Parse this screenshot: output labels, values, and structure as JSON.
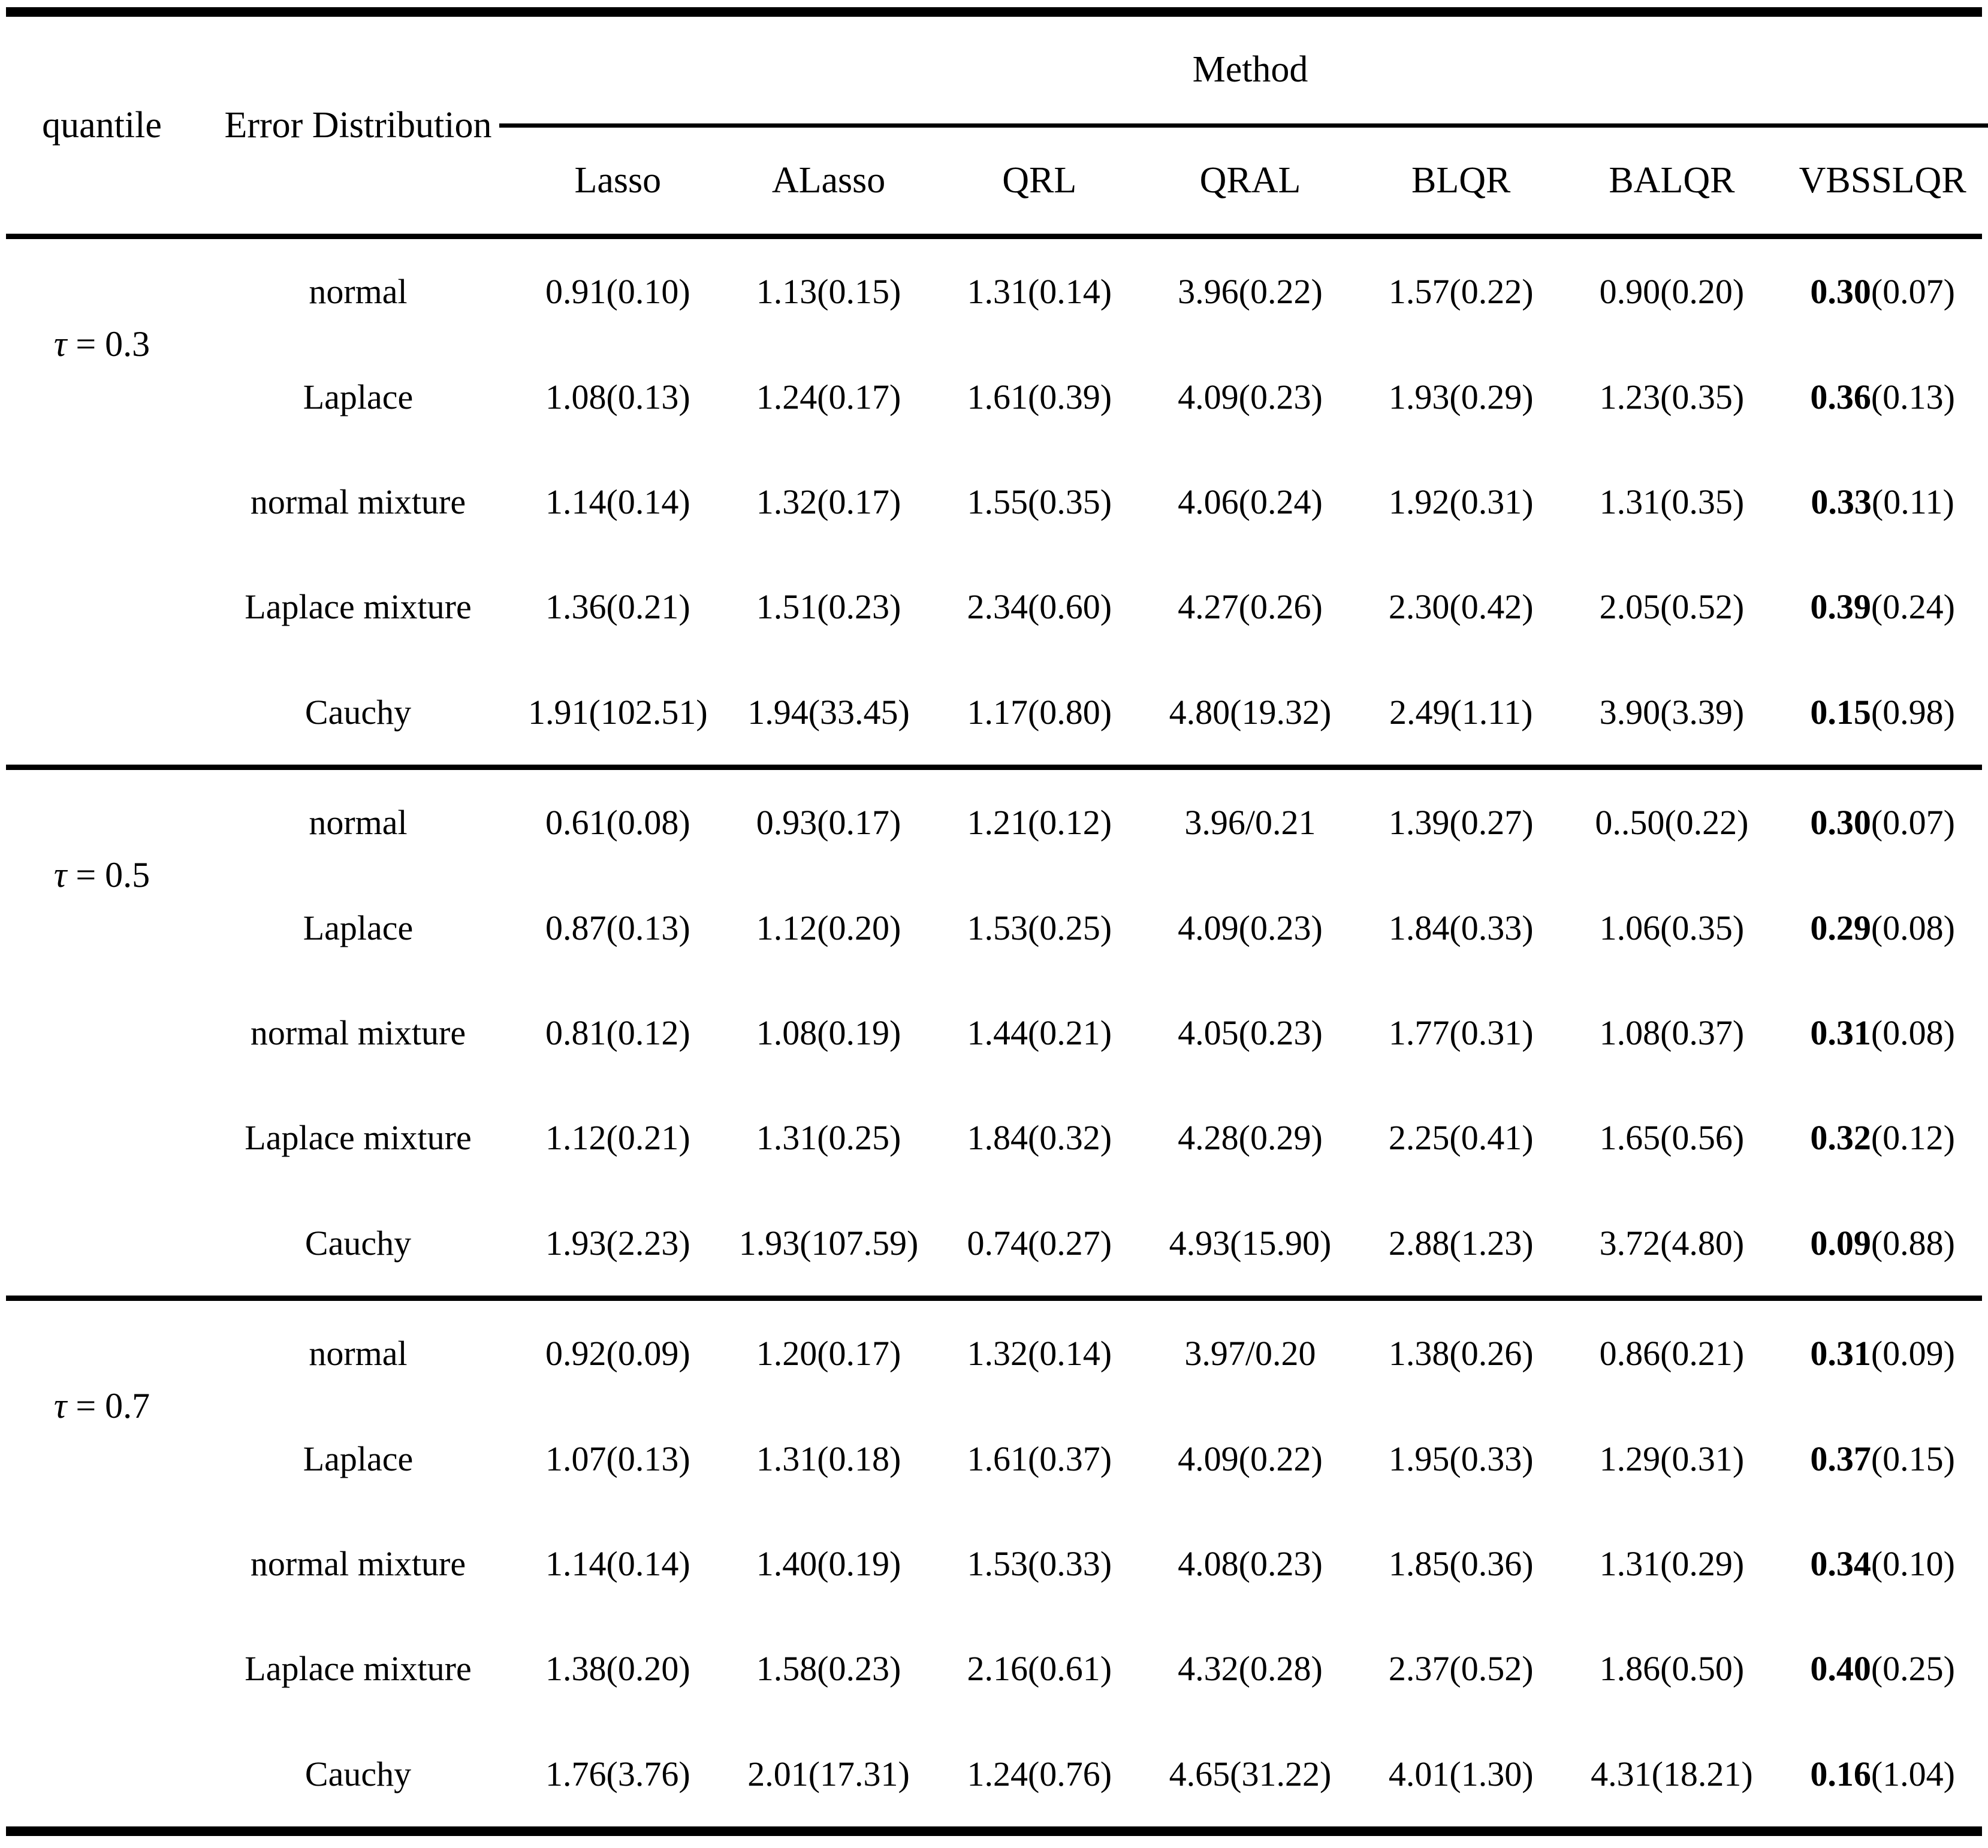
{
  "table": {
    "header": {
      "quantile": "quantile",
      "error_distribution": "Error Distribution",
      "method": "Method",
      "methods": [
        "Lasso",
        "ALasso",
        "QRL",
        "QRAL",
        "BLQR",
        "BALQR",
        "VBSSLQR"
      ]
    },
    "groups": [
      {
        "quantile": "τ = 0.3",
        "rows": [
          {
            "dist": "normal",
            "cells": [
              {
                "text": "0.91(0.10)"
              },
              {
                "text": "1.13(0.15)"
              },
              {
                "text": "1.31(0.14)"
              },
              {
                "text": "3.96(0.22)"
              },
              {
                "text": "1.57(0.22)"
              },
              {
                "text": "0.90(0.20)"
              },
              {
                "bold": "0.30",
                "text": "(0.07)"
              }
            ]
          },
          {
            "dist": "Laplace",
            "cells": [
              {
                "text": "1.08(0.13)"
              },
              {
                "text": "1.24(0.17)"
              },
              {
                "text": "1.61(0.39)"
              },
              {
                "text": "4.09(0.23)"
              },
              {
                "text": "1.93(0.29)"
              },
              {
                "text": "1.23(0.35)"
              },
              {
                "bold": "0.36",
                "text": "(0.13)"
              }
            ]
          },
          {
            "dist": "normal mixture",
            "cells": [
              {
                "text": "1.14(0.14)"
              },
              {
                "text": "1.32(0.17)"
              },
              {
                "text": "1.55(0.35)"
              },
              {
                "text": "4.06(0.24)"
              },
              {
                "text": "1.92(0.31)"
              },
              {
                "text": "1.31(0.35)"
              },
              {
                "bold": "0.33",
                "text": "(0.11)"
              }
            ]
          },
          {
            "dist": "Laplace mixture",
            "cells": [
              {
                "text": "1.36(0.21)"
              },
              {
                "text": "1.51(0.23)"
              },
              {
                "text": "2.34(0.60)"
              },
              {
                "text": "4.27(0.26)"
              },
              {
                "text": "2.30(0.42)"
              },
              {
                "text": "2.05(0.52)"
              },
              {
                "bold": "0.39",
                "text": "(0.24)"
              }
            ]
          },
          {
            "dist": "Cauchy",
            "cells": [
              {
                "text": "1.91(102.51)"
              },
              {
                "text": "1.94(33.45)"
              },
              {
                "text": "1.17(0.80)"
              },
              {
                "text": "4.80(19.32)"
              },
              {
                "text": "2.49(1.11)"
              },
              {
                "text": "3.90(3.39)"
              },
              {
                "bold": "0.15",
                "text": "(0.98)"
              }
            ]
          }
        ]
      },
      {
        "quantile": "τ = 0.5",
        "rows": [
          {
            "dist": "normal",
            "cells": [
              {
                "text": "0.61(0.08)"
              },
              {
                "text": "0.93(0.17)"
              },
              {
                "text": "1.21(0.12)"
              },
              {
                "text": "3.96/0.21"
              },
              {
                "text": "1.39(0.27)"
              },
              {
                "text": "0..50(0.22)"
              },
              {
                "bold": "0.30",
                "text": "(0.07)"
              }
            ]
          },
          {
            "dist": "Laplace",
            "cells": [
              {
                "text": "0.87(0.13)"
              },
              {
                "text": "1.12(0.20)"
              },
              {
                "text": "1.53(0.25)"
              },
              {
                "text": "4.09(0.23)"
              },
              {
                "text": "1.84(0.33)"
              },
              {
                "text": "1.06(0.35)"
              },
              {
                "bold": "0.29",
                "text": "(0.08)"
              }
            ]
          },
          {
            "dist": "normal mixture",
            "cells": [
              {
                "text": "0.81(0.12)"
              },
              {
                "text": "1.08(0.19)"
              },
              {
                "text": "1.44(0.21)"
              },
              {
                "text": "4.05(0.23)"
              },
              {
                "text": "1.77(0.31)"
              },
              {
                "text": "1.08(0.37)"
              },
              {
                "bold": "0.31",
                "text": "(0.08)"
              }
            ]
          },
          {
            "dist": "Laplace mixture",
            "cells": [
              {
                "text": "1.12(0.21)"
              },
              {
                "text": "1.31(0.25)"
              },
              {
                "text": "1.84(0.32)"
              },
              {
                "text": "4.28(0.29)"
              },
              {
                "text": "2.25(0.41)"
              },
              {
                "text": "1.65(0.56)"
              },
              {
                "bold": "0.32",
                "text": "(0.12)"
              }
            ]
          },
          {
            "dist": "Cauchy",
            "cells": [
              {
                "text": "1.93(2.23)"
              },
              {
                "text": "1.93(107.59)"
              },
              {
                "text": "0.74(0.27)"
              },
              {
                "text": "4.93(15.90)"
              },
              {
                "text": "2.88(1.23)"
              },
              {
                "text": "3.72(4.80)"
              },
              {
                "bold": "0.09",
                "text": "(0.88)"
              }
            ]
          }
        ]
      },
      {
        "quantile": "τ = 0.7",
        "rows": [
          {
            "dist": "normal",
            "cells": [
              {
                "text": "0.92(0.09)"
              },
              {
                "text": "1.20(0.17)"
              },
              {
                "text": "1.32(0.14)"
              },
              {
                "text": "3.97/0.20"
              },
              {
                "text": "1.38(0.26)"
              },
              {
                "text": "0.86(0.21)"
              },
              {
                "bold": "0.31",
                "text": "(0.09)"
              }
            ]
          },
          {
            "dist": "Laplace",
            "cells": [
              {
                "text": "1.07(0.13)"
              },
              {
                "text": "1.31(0.18)"
              },
              {
                "text": "1.61(0.37)"
              },
              {
                "text": "4.09(0.22)"
              },
              {
                "text": "1.95(0.33)"
              },
              {
                "text": "1.29(0.31)"
              },
              {
                "bold": "0.37",
                "text": "(0.15)"
              }
            ]
          },
          {
            "dist": "normal mixture",
            "cells": [
              {
                "text": "1.14(0.14)"
              },
              {
                "text": "1.40(0.19)"
              },
              {
                "text": "1.53(0.33)"
              },
              {
                "text": "4.08(0.23)"
              },
              {
                "text": "1.85(0.36)"
              },
              {
                "text": "1.31(0.29)"
              },
              {
                "bold": "0.34",
                "text": "(0.10)"
              }
            ]
          },
          {
            "dist": "Laplace mixture",
            "cells": [
              {
                "text": "1.38(0.20)"
              },
              {
                "text": "1.58(0.23)"
              },
              {
                "text": "2.16(0.61)"
              },
              {
                "text": "4.32(0.28)"
              },
              {
                "text": "2.37(0.52)"
              },
              {
                "text": "1.86(0.50)"
              },
              {
                "bold": "0.40",
                "text": "(0.25)"
              }
            ]
          },
          {
            "dist": "Cauchy",
            "cells": [
              {
                "text": "1.76(3.76)"
              },
              {
                "text": "2.01(17.31)"
              },
              {
                "text": "1.24(0.76)"
              },
              {
                "text": "4.65(31.22)"
              },
              {
                "text": "4.01(1.30)"
              },
              {
                "text": "4.31(18.21)"
              },
              {
                "bold": "0.16",
                "text": "(1.04)"
              }
            ]
          }
        ]
      }
    ]
  }
}
